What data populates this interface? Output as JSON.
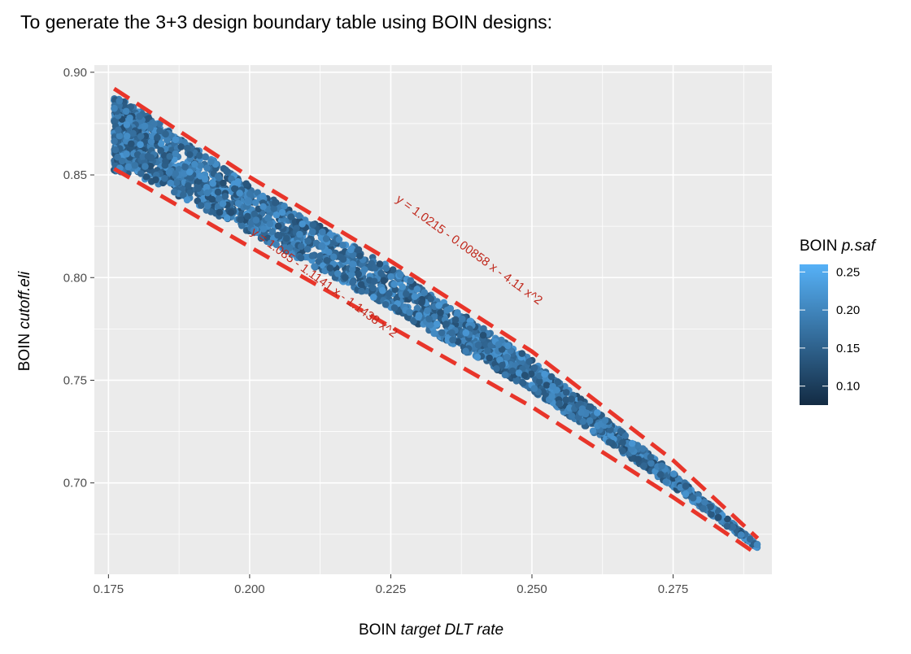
{
  "page": {
    "heading": "To generate the 3+3 design boundary table using BOIN designs:"
  },
  "chart_data": {
    "type": "scatter",
    "x_axis": {
      "label_plain": "BOIN ",
      "label_italic": "target DLT rate",
      "range": [
        0.1725,
        0.2925
      ],
      "ticks": [
        "0.175",
        "0.200",
        "0.225",
        "0.250",
        "0.275"
      ],
      "tick_values": [
        0.175,
        0.2,
        0.225,
        0.25,
        0.275
      ]
    },
    "y_axis": {
      "label_plain": "BOIN ",
      "label_italic": "cutoff.eli",
      "range": [
        0.6555,
        0.9035
      ],
      "ticks": [
        "0.70",
        "0.75",
        "0.80",
        "0.85",
        "0.90"
      ],
      "tick_values": [
        0.7,
        0.75,
        0.8,
        0.85,
        0.9
      ]
    },
    "grid": true,
    "color_scale": {
      "title_plain": "BOIN ",
      "title_italic": "p.saf",
      "range": [
        0.075,
        0.26
      ],
      "ticks": [
        "0.25",
        "0.20",
        "0.15",
        "0.10"
      ],
      "tick_values": [
        0.25,
        0.2,
        0.15,
        0.1
      ],
      "low_color": "#132b43",
      "high_color": "#56b1f7",
      "legend_position": "right"
    },
    "point_cloud": {
      "description_x_range": [
        0.176,
        0.29
      ],
      "upper_edge": [
        [
          0.176,
          0.889
        ],
        [
          0.18,
          0.883
        ],
        [
          0.2,
          0.845
        ],
        [
          0.225,
          0.805
        ],
        [
          0.25,
          0.76
        ],
        [
          0.275,
          0.705
        ],
        [
          0.29,
          0.67
        ]
      ],
      "lower_edge": [
        [
          0.176,
          0.852
        ],
        [
          0.18,
          0.85
        ],
        [
          0.2,
          0.822
        ],
        [
          0.225,
          0.785
        ],
        [
          0.25,
          0.745
        ],
        [
          0.275,
          0.698
        ],
        [
          0.29,
          0.668
        ]
      ]
    },
    "boundary_lines": [
      {
        "label": "y = 1.0215 - 0.00858 x - 4.11 x^2",
        "color": "#e8352a",
        "style": "dashed",
        "points": [
          [
            0.176,
            0.892
          ],
          [
            0.2,
            0.849
          ],
          [
            0.225,
            0.808
          ],
          [
            0.25,
            0.764
          ],
          [
            0.275,
            0.711
          ],
          [
            0.29,
            0.673
          ]
        ]
      },
      {
        "label": "y = 1.085 - 1.1141 x - 1.1438 x^2",
        "color": "#e8352a",
        "style": "dashed",
        "points": [
          [
            0.176,
            0.853
          ],
          [
            0.2,
            0.815
          ],
          [
            0.225,
            0.776
          ],
          [
            0.25,
            0.737
          ],
          [
            0.275,
            0.693
          ],
          [
            0.29,
            0.665
          ]
        ]
      }
    ],
    "annotations": [
      {
        "text": "y = 1.0215 - 0.00858 x - 4.11 x^2",
        "x": 0.2385,
        "y": 0.812,
        "angle": 36
      },
      {
        "text": "y = 1.085 - 1.1141 x - 1.1438 x^2",
        "x": 0.2128,
        "y": 0.796,
        "angle": 36
      }
    ]
  }
}
